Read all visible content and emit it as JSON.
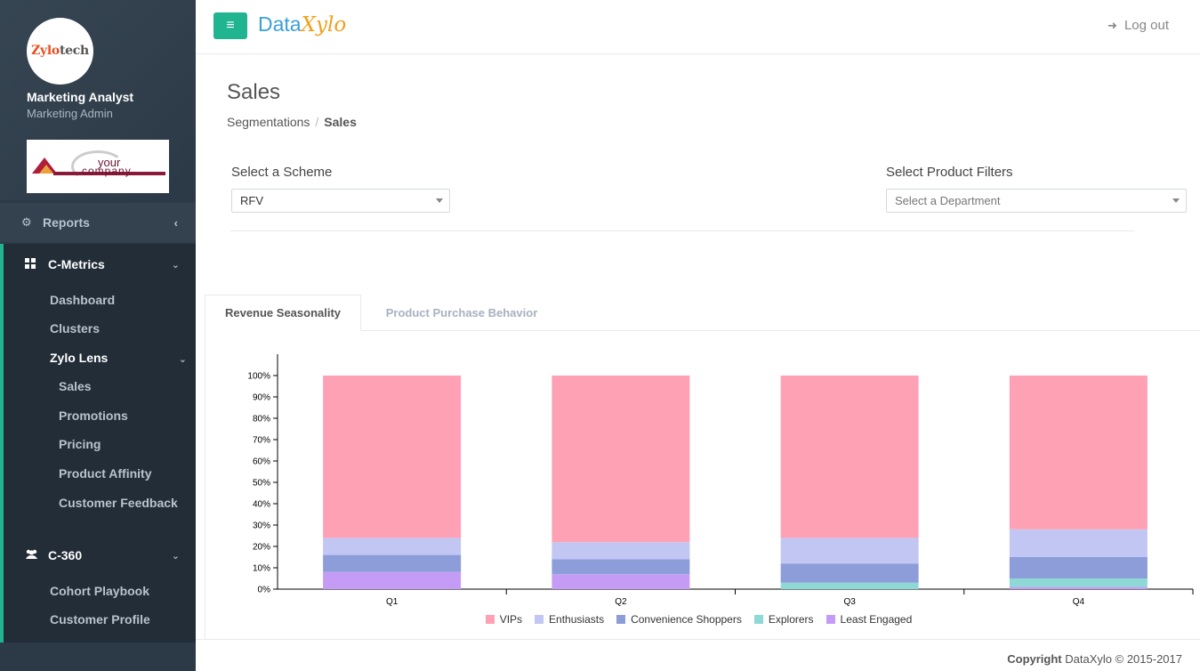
{
  "user": {
    "name": "Marketing Analyst",
    "role": "Marketing Admin",
    "avatar_brand": "Zylo",
    "avatar_brand_2": "tech"
  },
  "company_logo": {
    "line1": "your",
    "line2": "company"
  },
  "sidebar": {
    "reports_label": "Reports",
    "cmetrics": {
      "label": "C-Metrics",
      "items": [
        "Dashboard",
        "Clusters"
      ],
      "zylo_lens": {
        "label": "Zylo Lens",
        "items": [
          "Sales",
          "Promotions",
          "Pricing",
          "Product Affinity",
          "Customer Feedback"
        ]
      }
    },
    "c360": {
      "label": "C-360",
      "items": [
        "Cohort Playbook",
        "Customer Profile"
      ]
    }
  },
  "header": {
    "logo_data": "Data",
    "logo_xylo": "Xylo",
    "logout_label": "Log out"
  },
  "page": {
    "title": "Sales"
  },
  "breadcrumb": {
    "parent": "Segmentations",
    "current": "Sales"
  },
  "filters": {
    "scheme_label": "Select a Scheme",
    "scheme_value": "RFV",
    "product_label": "Select Product Filters",
    "department_placeholder": "Select a Department"
  },
  "tabs": {
    "active": "Revenue Seasonality",
    "inactive": "Product Purchase Behavior"
  },
  "colors": {
    "accent": "#20b491",
    "vips": "#ffa1b5",
    "enthusiasts": "#c1c6f2",
    "convenience": "#8d9dd9",
    "explorers": "#8ed8d6",
    "least_engaged": "#c49cf5"
  },
  "chart_data": {
    "type": "bar",
    "stacked": true,
    "categories": [
      "Q1",
      "Q2",
      "Q3",
      "Q4"
    ],
    "y_ticks": [
      "0%",
      "10%",
      "20%",
      "30%",
      "40%",
      "50%",
      "60%",
      "70%",
      "80%",
      "90%",
      "100%"
    ],
    "ylim": [
      0,
      100
    ],
    "series": [
      {
        "name": "Least Engaged",
        "color": "#c49cf5",
        "values": [
          8,
          7,
          0,
          1
        ]
      },
      {
        "name": "Explorers",
        "color": "#8ed8d6",
        "values": [
          0,
          0,
          3,
          4
        ]
      },
      {
        "name": "Convenience Shoppers",
        "color": "#8d9dd9",
        "values": [
          8,
          7,
          9,
          10
        ]
      },
      {
        "name": "Enthusiasts",
        "color": "#c1c6f2",
        "values": [
          8,
          8,
          12,
          13
        ]
      },
      {
        "name": "VIPs",
        "color": "#ffa1b5",
        "values": [
          76,
          78,
          76,
          72
        ]
      }
    ],
    "legend": [
      "VIPs",
      "Enthusiasts",
      "Convenience Shoppers",
      "Explorers",
      "Least Engaged"
    ],
    "legend_position": "bottom"
  },
  "footer": {
    "copyright_bold": "Copyright",
    "copyright_rest": "DataXylo © 2015-2017"
  }
}
